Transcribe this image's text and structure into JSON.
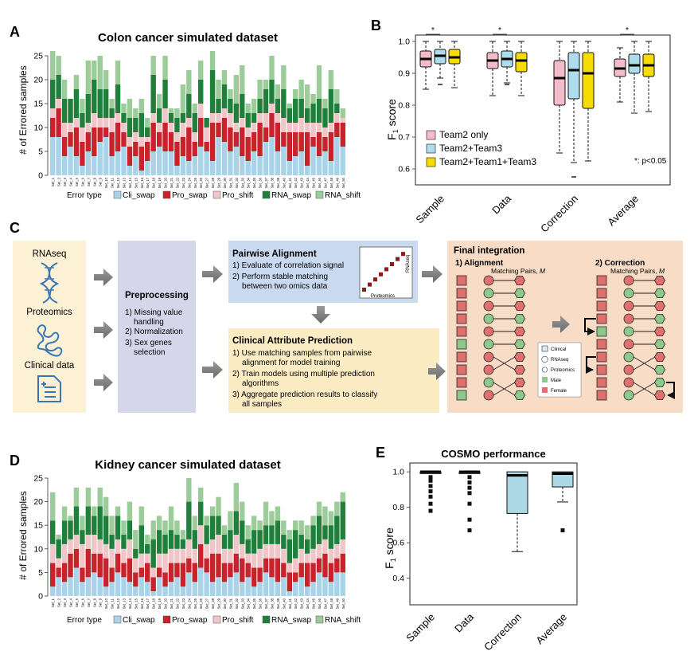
{
  "figure": {
    "panel_letters": [
      "A",
      "B",
      "C",
      "D",
      "E"
    ]
  },
  "colors": {
    "cli_swap": "#a9d3e8",
    "pro_swap": "#c8222b",
    "pro_shift": "#f1c6c8",
    "rna_swap": "#1f7f3b",
    "rna_shift": "#9ccc9a",
    "team2": "#f4bccb",
    "team23": "#aedcec",
    "team213": "#f7dc00",
    "cosmo_box": "#add8e6",
    "left_panel_bg": "#fdf1d5",
    "pre_bg": "#d6d6ea",
    "pair_bg": "#c9daf0",
    "cap_bg": "#fcecc3",
    "final_bg": "#f8dcc6",
    "female": "#e06f70",
    "male": "#8cc98a"
  },
  "chart_data": [
    {
      "id": "A",
      "type": "bar",
      "stacked": true,
      "title": "Colon cancer simulated dataset",
      "xlabel": "",
      "ylabel": "# of Errored samples",
      "ylim": [
        0,
        25
      ],
      "yticks": [
        0,
        5,
        10,
        15,
        20,
        25
      ],
      "categories": [
        "Set_1",
        "Set_2",
        "Set_3",
        "Set_4",
        "Set_5",
        "Set_6",
        "Set_7",
        "Set_8",
        "Set_9",
        "Set_10",
        "Set_11",
        "Set_12",
        "Set_13",
        "Set_14",
        "Set_15",
        "Set_16",
        "Set_17",
        "Set_18",
        "Set_19",
        "Set_20",
        "Set_21",
        "Set_22",
        "Set_23",
        "Set_24",
        "Set_25",
        "Set_26",
        "Set_27",
        "Set_28",
        "Set_29",
        "Set_30",
        "Set_31",
        "Set_32",
        "Set_33",
        "Set_34",
        "Set_35",
        "Set_36",
        "Set_37",
        "Set_38",
        "Set_39",
        "Set_40",
        "Set_41",
        "Set_42",
        "Set_43",
        "Set_44",
        "Set_45",
        "Set_46",
        "Set_47",
        "Set_48",
        "Set_49",
        "Set_50"
      ],
      "legend_title": "Error type",
      "series": [
        {
          "name": "Cli_swap",
          "values": [
            8,
            8,
            4,
            6,
            4,
            2,
            5,
            4,
            7,
            8,
            4,
            5,
            6,
            2,
            4,
            1,
            3,
            5,
            6,
            5,
            5,
            2,
            4,
            3,
            4,
            6,
            5,
            3,
            8,
            7,
            5,
            6,
            4,
            3,
            5,
            4,
            7,
            8,
            5,
            6,
            3,
            4,
            5,
            2,
            6,
            4,
            5,
            3,
            8,
            6
          ]
        },
        {
          "name": "Pro_swap",
          "values": [
            4,
            6,
            4,
            3,
            6,
            5,
            4,
            6,
            3,
            2,
            5,
            6,
            3,
            4,
            3,
            5,
            4,
            6,
            3,
            6,
            4,
            5,
            4,
            7,
            3,
            6,
            2,
            8,
            3,
            5,
            5,
            3,
            6,
            5,
            4,
            7,
            3,
            5,
            6,
            3,
            6,
            5,
            4,
            7,
            2,
            5,
            3,
            6,
            3,
            5
          ]
        },
        {
          "name": "Pro_shift",
          "values": [
            2,
            2,
            3,
            2,
            2,
            3,
            2,
            3,
            2,
            2,
            3,
            2,
            2,
            2,
            2,
            2,
            1,
            2,
            2,
            3,
            2,
            2,
            3,
            2,
            2,
            3,
            3,
            2,
            2,
            2,
            3,
            2,
            2,
            2,
            2,
            2,
            3,
            2,
            2,
            3,
            2,
            2,
            3,
            2,
            3,
            2,
            2,
            2,
            2,
            1
          ]
        },
        {
          "name": "RNA_swap",
          "values": [
            6,
            5,
            5,
            5,
            6,
            3,
            6,
            7,
            6,
            6,
            2,
            6,
            2,
            4,
            3,
            5,
            2,
            8,
            3,
            6,
            2,
            3,
            2,
            5,
            4,
            5,
            2,
            9,
            3,
            5,
            3,
            4,
            5,
            3,
            2,
            3,
            5,
            5,
            3,
            6,
            3,
            5,
            4,
            3,
            4,
            5,
            4,
            7,
            2,
            0
          ]
        },
        {
          "name": "RNA_shift",
          "values": [
            6,
            4,
            4,
            0,
            3,
            3,
            7,
            4,
            7,
            4,
            2,
            5,
            2,
            4,
            2,
            3,
            2,
            4,
            3,
            5,
            1,
            2,
            6,
            5,
            2,
            4,
            0,
            4,
            4,
            3,
            2,
            6,
            6,
            2,
            3,
            4,
            2,
            5,
            3,
            5,
            1,
            2,
            4,
            5,
            2,
            7,
            2,
            4,
            3,
            2
          ]
        }
      ]
    },
    {
      "id": "B",
      "type": "box",
      "title": "",
      "ylabel": "F1 score",
      "ylim": [
        0.55,
        1.02
      ],
      "yticks": [
        0.6,
        0.7,
        0.8,
        0.9,
        1.0
      ],
      "ytick_labels": [
        "0.6",
        "0.7",
        "0.8",
        "0.9",
        "1.0"
      ],
      "categories": [
        "Sample",
        "Data",
        "Correction",
        "Average"
      ],
      "significance_marks": [
        0,
        1,
        3
      ],
      "significance_text": "*",
      "note": "*: p<0.05",
      "series": [
        {
          "name": "Team2 only",
          "boxes": [
            {
              "lo": 0.85,
              "q1": 0.92,
              "med": 0.945,
              "q3": 0.97,
              "hi": 1.0
            },
            {
              "lo": 0.83,
              "q1": 0.915,
              "med": 0.94,
              "q3": 0.965,
              "hi": 1.0
            },
            {
              "lo": 0.65,
              "q1": 0.8,
              "med": 0.885,
              "q3": 0.94,
              "hi": 1.0
            },
            {
              "lo": 0.81,
              "q1": 0.89,
              "med": 0.915,
              "q3": 0.945,
              "hi": 0.98
            }
          ],
          "outliers": [
            [],
            [],
            [],
            []
          ]
        },
        {
          "name": "Team2+Team3",
          "boxes": [
            {
              "lo": 0.885,
              "q1": 0.93,
              "med": 0.955,
              "q3": 0.975,
              "hi": 1.0
            },
            {
              "lo": 0.87,
              "q1": 0.92,
              "med": 0.945,
              "q3": 0.97,
              "hi": 1.0
            },
            {
              "lo": 0.62,
              "q1": 0.82,
              "med": 0.91,
              "q3": 0.965,
              "hi": 1.0
            },
            {
              "lo": 0.775,
              "q1": 0.9,
              "med": 0.925,
              "q3": 0.96,
              "hi": 1.0
            }
          ],
          "outliers": [
            [
              0.865
            ],
            [
              0.865
            ],
            [
              0.575
            ],
            []
          ]
        },
        {
          "name": "Team2+Team1+Team3",
          "boxes": [
            {
              "lo": 0.855,
              "q1": 0.93,
              "med": 0.95,
              "q3": 0.975,
              "hi": 1.0
            },
            {
              "lo": 0.83,
              "q1": 0.905,
              "med": 0.94,
              "q3": 0.965,
              "hi": 1.0
            },
            {
              "lo": 0.625,
              "q1": 0.79,
              "med": 0.9,
              "q3": 0.965,
              "hi": 1.0
            },
            {
              "lo": 0.78,
              "q1": 0.89,
              "med": 0.925,
              "q3": 0.96,
              "hi": 1.0
            }
          ],
          "outliers": [
            [],
            [],
            [],
            []
          ]
        }
      ]
    },
    {
      "id": "D",
      "type": "bar",
      "stacked": true,
      "title": "Kidney cancer simulated dataset",
      "xlabel": "",
      "ylabel": "# of Errored samples",
      "ylim": [
        0,
        25
      ],
      "yticks": [
        0,
        5,
        10,
        15,
        20,
        25
      ],
      "categories": [
        "Set_1",
        "Set_2",
        "Set_3",
        "Set_4",
        "Set_5",
        "Set_6",
        "Set_7",
        "Set_8",
        "Set_9",
        "Set_10",
        "Set_11",
        "Set_12",
        "Set_13",
        "Set_14",
        "Set_15",
        "Set_16",
        "Set_17",
        "Set_18",
        "Set_19",
        "Set_20",
        "Set_21",
        "Set_22",
        "Set_23",
        "Set_24",
        "Set_25",
        "Set_26",
        "Set_27",
        "Set_28",
        "Set_29",
        "Set_30",
        "Set_31",
        "Set_32",
        "Set_33",
        "Set_34",
        "Set_35",
        "Set_36",
        "Set_37",
        "Set_38",
        "Set_39",
        "Set_40",
        "Set_41",
        "Set_42",
        "Set_43",
        "Set_44",
        "Set_45",
        "Set_46",
        "Set_47",
        "Set_48",
        "Set_49",
        "Set_50"
      ],
      "legend_title": "Error type",
      "series": [
        {
          "name": "Cli_swap",
          "values": [
            2,
            4,
            3,
            4,
            6,
            3,
            4,
            5,
            4,
            2,
            3,
            5,
            4,
            3,
            2,
            4,
            3,
            1,
            4,
            2,
            3,
            4,
            2,
            5,
            3,
            6,
            5,
            3,
            4,
            3,
            4,
            5,
            3,
            4,
            2,
            3,
            5,
            4,
            3,
            4,
            1,
            3,
            4,
            2,
            3,
            5,
            4,
            3,
            5,
            5
          ]
        },
        {
          "name": "Pro_swap",
          "values": [
            5,
            2,
            4,
            5,
            4,
            3,
            6,
            4,
            5,
            6,
            3,
            4,
            3,
            5,
            3,
            2,
            4,
            3,
            2,
            3,
            4,
            3,
            5,
            3,
            4,
            5,
            3,
            6,
            5,
            4,
            3,
            4,
            5,
            3,
            4,
            3,
            3,
            4,
            5,
            3,
            4,
            2,
            3,
            5,
            4,
            3,
            5,
            4,
            3,
            4
          ]
        },
        {
          "name": "Pro_shift",
          "values": [
            4,
            2,
            4,
            3,
            3,
            5,
            3,
            4,
            3,
            3,
            4,
            3,
            3,
            4,
            3,
            3,
            2,
            2,
            3,
            4,
            3,
            3,
            3,
            4,
            3,
            4,
            3,
            3,
            4,
            3,
            3,
            4,
            3,
            2,
            3,
            4,
            3,
            3,
            3,
            3,
            2,
            3,
            3,
            2,
            3,
            3,
            3,
            3,
            3,
            3
          ]
        },
        {
          "name": "RNA_swap",
          "values": [
            5,
            4,
            5,
            4,
            6,
            3,
            6,
            4,
            7,
            6,
            3,
            5,
            3,
            4,
            2,
            6,
            2,
            6,
            5,
            4,
            4,
            3,
            2,
            8,
            4,
            5,
            4,
            5,
            4,
            3,
            4,
            5,
            5,
            3,
            5,
            4,
            4,
            4,
            5,
            3,
            5,
            6,
            3,
            3,
            5,
            6,
            3,
            5,
            6,
            8
          ]
        },
        {
          "name": "RNA_shift",
          "values": [
            6,
            1,
            3,
            1,
            4,
            3,
            4,
            2,
            4,
            4,
            4,
            2,
            3,
            4,
            4,
            4,
            2,
            4,
            3,
            3,
            5,
            3,
            2,
            5,
            3,
            3,
            2,
            2,
            4,
            2,
            4,
            6,
            4,
            3,
            3,
            2,
            5,
            3,
            3,
            3,
            2,
            2,
            3,
            3,
            2,
            3,
            4,
            3,
            3,
            2
          ]
        }
      ]
    },
    {
      "id": "E",
      "type": "box",
      "title": "COSMO performance",
      "ylabel": "F1 score",
      "ylim": [
        0.25,
        1.05
      ],
      "yticks": [
        0.4,
        0.6,
        0.8,
        1.0
      ],
      "ytick_labels": [
        "0.4",
        "0.6",
        "0.8",
        "1.0"
      ],
      "categories": [
        "Sample",
        "Data",
        "Correction",
        "Average"
      ],
      "boxes": [
        {
          "lo": 0.99,
          "q1": 0.99,
          "med": 1.0,
          "q3": 1.0,
          "hi": 1.0
        },
        {
          "lo": 0.99,
          "q1": 0.99,
          "med": 1.0,
          "q3": 1.0,
          "hi": 1.0
        },
        {
          "lo": 0.55,
          "q1": 0.765,
          "med": 0.98,
          "q3": 1.0,
          "hi": 1.0
        },
        {
          "lo": 0.83,
          "q1": 0.915,
          "med": 0.99,
          "q3": 1.0,
          "hi": 1.0
        }
      ],
      "outliers": [
        [
          0.78,
          0.82,
          0.86,
          0.89,
          0.92,
          0.95,
          0.97
        ],
        [
          0.67,
          0.73,
          0.82,
          0.88,
          0.91,
          0.94,
          0.97
        ],
        [],
        [
          0.67
        ]
      ]
    }
  ],
  "panelC": {
    "inputs": [
      "RNAseq",
      "Proteomics",
      "Clinical data"
    ],
    "preprocessing": {
      "title": "Preprocessing",
      "lines": [
        "1) Missing value",
        "handling",
        "2) Normalization",
        "3) Sex genes",
        "selection"
      ]
    },
    "pairwise": {
      "title": "Pairwise Alignment",
      "lines": [
        "1) Evaluate of correlation signal",
        "2) Perform stable matching",
        "between two omics data"
      ],
      "matrix_x": "Proteomics",
      "matrix_y": "RNAseq"
    },
    "clinical_prediction": {
      "title": "Clinical Attribute Prediction",
      "lines": [
        "1) Use matching samples from pairwise",
        "alignment for model training",
        "2) Train models using multiple prediction",
        "algorithms",
        "3) Aggregate prediction results to classify",
        "all samples"
      ]
    },
    "final": {
      "title": "Final integration",
      "alignment_label": "1) Alignment",
      "correction_label": "2) Correction",
      "pairs_label_prefix": "Matching Pairs, ",
      "pairs_label_var": "M",
      "legend": [
        "Clinical",
        "RNAseq",
        "Proteomics",
        "Male",
        "Female"
      ]
    }
  }
}
